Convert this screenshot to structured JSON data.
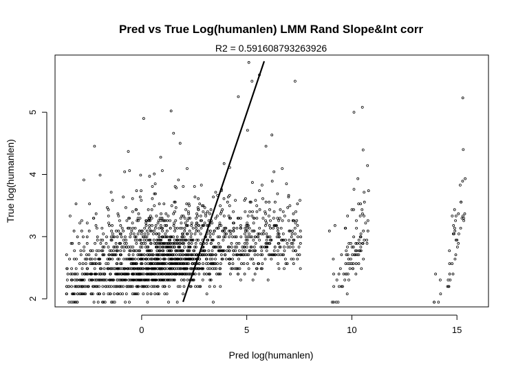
{
  "chart_data": {
    "type": "scatter",
    "title": "Pred vs True Log(humanlen) LMM Rand Slope&Int corr",
    "subtitle": "R2 = 0.591608793263926",
    "xlabel": "Pred log(humanlen)",
    "ylabel": "True log(humanlen)",
    "xlim": [
      -4.12,
      16.5
    ],
    "ylim": [
      1.87,
      5.92
    ],
    "x_ticks": [
      0,
      5,
      10,
      15
    ],
    "y_ticks": [
      2,
      3,
      4,
      5
    ],
    "grid": false,
    "legend": "none",
    "fit_line": {
      "x": [
        1.97,
        5.83
      ],
      "y": [
        1.95,
        5.82
      ]
    },
    "point_clusters": [
      {
        "x_range": [
          -3.6,
          7.6
        ],
        "x_peak": 1.0,
        "y_floor": 1.95,
        "y_slope": 0.06,
        "y_intercept": 2.55,
        "n": 1800
      },
      {
        "x_range": [
          8.9,
          10.8
        ],
        "x_peak": 10.2,
        "y_floor": 1.95,
        "y_slope": 0.6,
        "y_intercept": -3.3,
        "n": 95
      },
      {
        "x_range": [
          13.8,
          15.4
        ],
        "x_peak": 15.0,
        "y_floor": 1.95,
        "y_slope": 1.3,
        "y_intercept": -16.5,
        "n": 45
      }
    ],
    "sample_points": [
      {
        "x": 5.1,
        "y": 5.8
      },
      {
        "x": 5.6,
        "y": 5.6
      },
      {
        "x": 5.25,
        "y": 5.5
      },
      {
        "x": 7.3,
        "y": 5.5
      },
      {
        "x": 4.6,
        "y": 5.25
      },
      {
        "x": 10.5,
        "y": 5.08
      },
      {
        "x": 15.3,
        "y": 4.4
      },
      {
        "x": 10.1,
        "y": 5.0
      },
      {
        "x": 1.4,
        "y": 5.02
      },
      {
        "x": 0.1,
        "y": 4.9
      }
    ]
  }
}
